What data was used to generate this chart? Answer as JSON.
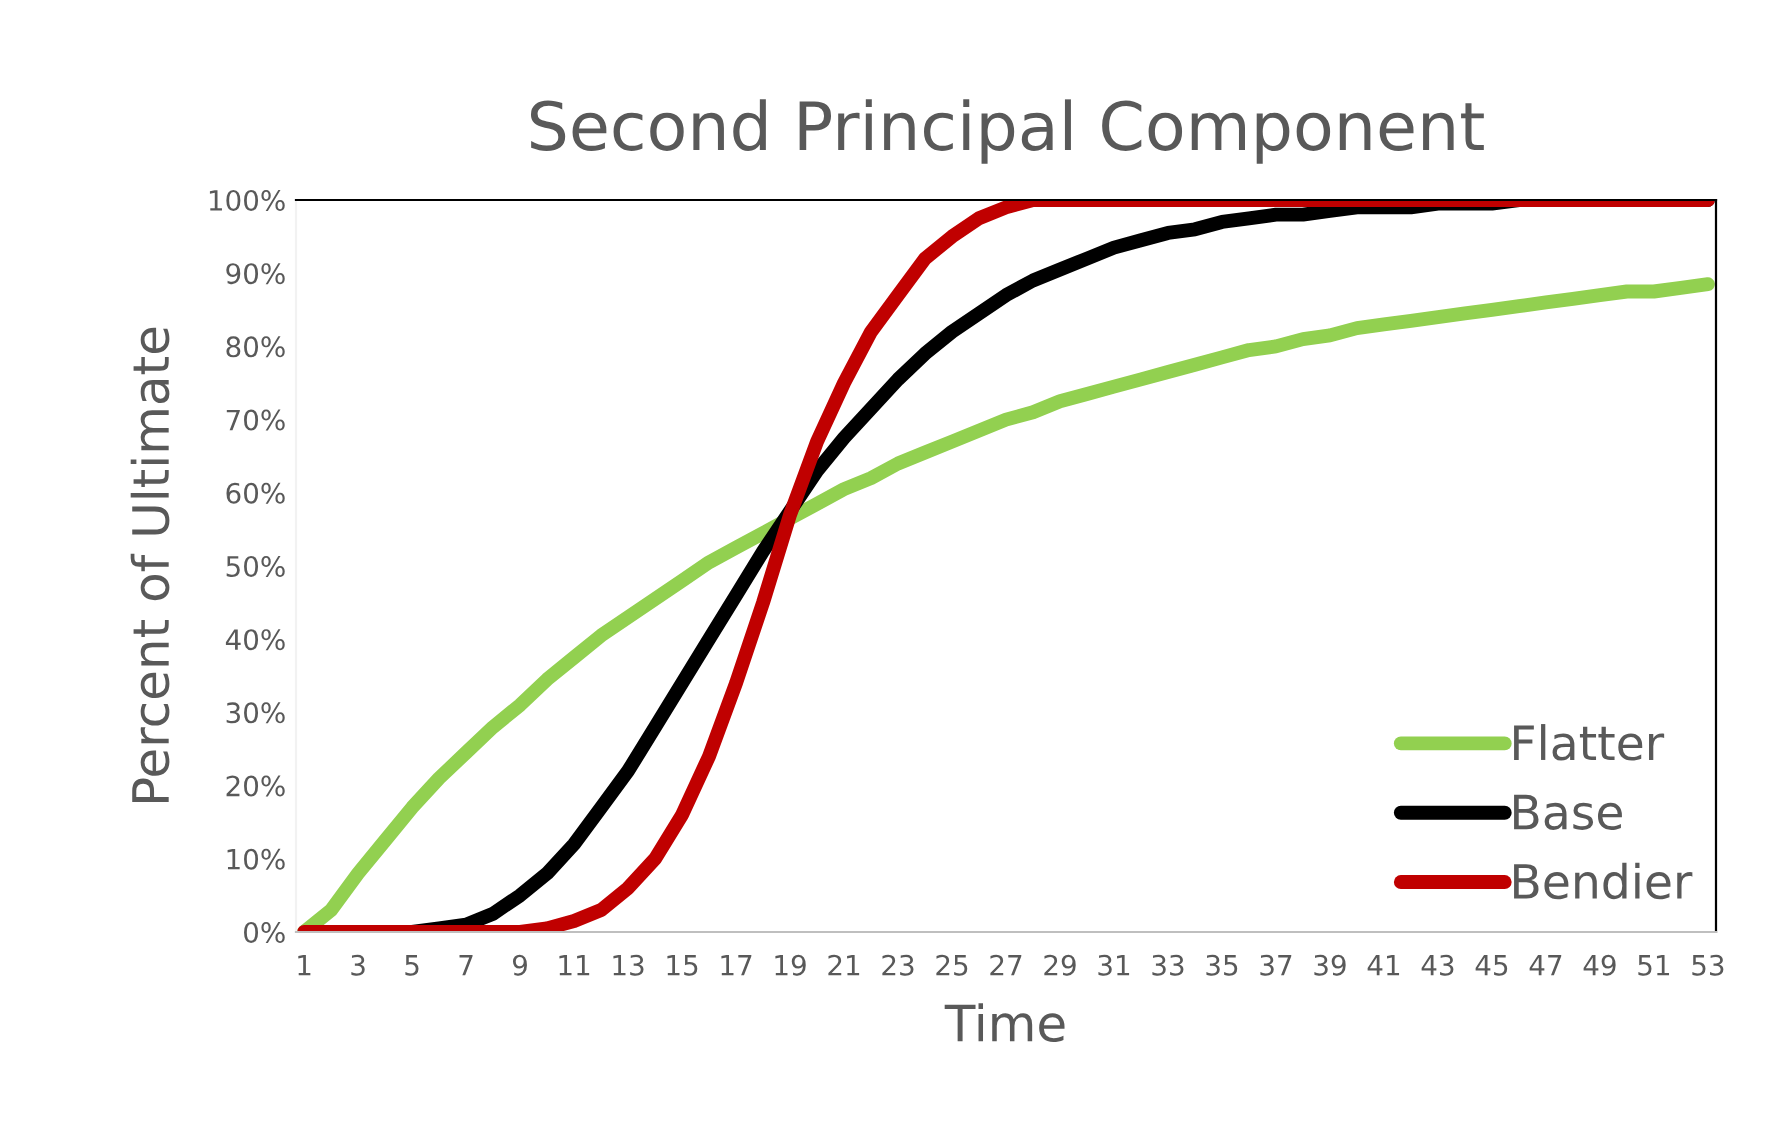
{
  "chart_data": {
    "type": "line",
    "title": "Second Principal Component",
    "xlabel": "Time",
    "ylabel": "Percent of Ultimate",
    "categories": [
      "1",
      null,
      "3",
      null,
      "5",
      null,
      "7",
      null,
      "9",
      null,
      "11",
      null,
      "13",
      null,
      "15",
      null,
      "17",
      null,
      "19",
      null,
      "21",
      null,
      "23",
      null,
      "25",
      null,
      "27",
      null,
      "29",
      null,
      "31",
      null,
      "33",
      null,
      "35",
      null,
      "37",
      null,
      "39",
      null,
      "41",
      null,
      "43",
      null,
      "45",
      null,
      "47",
      null,
      "49",
      null,
      "51",
      null,
      "53"
    ],
    "series": [
      {
        "name": "Flatter",
        "color": "#92d050",
        "values": [
          0,
          3,
          8,
          12.5,
          17,
          21,
          24.5,
          28,
          31,
          34.5,
          37.5,
          40.5,
          43,
          45.5,
          48,
          50.5,
          52.5,
          54.5,
          56.5,
          58.5,
          60.5,
          62,
          64,
          65.5,
          67,
          68.5,
          70,
          71,
          72.5,
          73.5,
          74.5,
          75.5,
          76.5,
          77.5,
          78.5,
          79.5,
          80,
          81,
          81.5,
          82.5,
          83,
          83.5,
          84,
          84.5,
          85,
          85.5,
          86,
          86.5,
          87,
          87.5,
          87.5,
          88,
          88.5
        ]
      },
      {
        "name": "Base",
        "color": "#000000",
        "values": [
          null,
          null,
          null,
          0,
          0,
          0.5,
          1,
          2.5,
          5,
          8,
          12,
          17,
          22,
          28,
          34,
          40,
          46,
          52,
          57.5,
          63,
          67.5,
          71.5,
          75.5,
          79,
          82,
          84.5,
          87,
          89,
          90.5,
          92,
          93.5,
          94.5,
          95.5,
          96,
          97,
          97.5,
          98,
          98,
          98.5,
          99,
          99,
          99,
          99.5,
          99.5,
          99.5,
          100,
          100,
          100,
          100,
          100,
          100,
          100,
          100
        ]
      },
      {
        "name": "Bendier",
        "color": "#c00000",
        "values": [
          0,
          0,
          0,
          0,
          0,
          0,
          0,
          0,
          0,
          0.5,
          1.5,
          3,
          6,
          10,
          16,
          24,
          34,
          45,
          57,
          67,
          75,
          82,
          87,
          92,
          95,
          97.5,
          99,
          100,
          100,
          100,
          100,
          100,
          100,
          100,
          100,
          100,
          100,
          100,
          100,
          100,
          100,
          100,
          100,
          100,
          100,
          100,
          100,
          100,
          100,
          100,
          100,
          100,
          100
        ]
      }
    ],
    "ylim": [
      0,
      100
    ],
    "yticks": [
      {
        "value": 0,
        "label": "0%"
      },
      {
        "value": 10,
        "label": "10%"
      },
      {
        "value": 20,
        "label": "20%"
      },
      {
        "value": 30,
        "label": "30%"
      },
      {
        "value": 40,
        "label": "40%"
      },
      {
        "value": 50,
        "label": "50%"
      },
      {
        "value": 60,
        "label": "60%"
      },
      {
        "value": 70,
        "label": "70%"
      },
      {
        "value": 80,
        "label": "80%"
      },
      {
        "value": 90,
        "label": "90%"
      },
      {
        "value": 100,
        "label": "100%"
      }
    ],
    "grid": false,
    "legend": "bottom right",
    "marker": "none",
    "line_style": "solid"
  }
}
